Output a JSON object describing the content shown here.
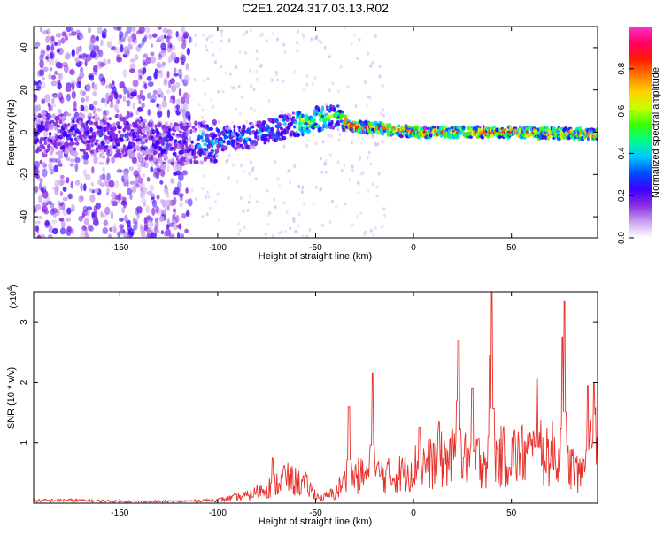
{
  "title": "C2E1.2024.317.03.13.R02",
  "chart_data": [
    {
      "type": "heatmap",
      "xlabel": "Height of straight line (km)",
      "ylabel": "Frequency (Hz)",
      "xlim": [
        -194,
        94
      ],
      "ylim": [
        -50,
        50
      ],
      "x_ticks": [
        -150,
        -100,
        -50,
        0,
        50
      ],
      "y_ticks": [
        -40,
        -20,
        0,
        20,
        40
      ],
      "colorbar": {
        "label": "Normalized spectral amplitude",
        "range": [
          0,
          1
        ],
        "ticks": [
          "0.0",
          "0.2",
          "0.4",
          "0.6",
          "0.8"
        ],
        "colormap": [
          "#ffffff",
          "#c8a0f0",
          "#8a2be2",
          "#3a00ff",
          "#0050ff",
          "#00c8ff",
          "#00ff8a",
          "#3cff00",
          "#c8ff00",
          "#ffd000",
          "#ff7a00",
          "#ff1a00",
          "#ff0066",
          "#ff33cc"
        ]
      },
      "ridge": [
        {
          "x": -194,
          "f": 0
        },
        {
          "x": -150,
          "f": -2
        },
        {
          "x": -120,
          "f": -6
        },
        {
          "x": -100,
          "f": -4
        },
        {
          "x": -80,
          "f": -1
        },
        {
          "x": -60,
          "f": 4
        },
        {
          "x": -45,
          "f": 7
        },
        {
          "x": -38,
          "f": 8
        },
        {
          "x": -32,
          "f": 3
        },
        {
          "x": -20,
          "f": 2
        },
        {
          "x": 0,
          "f": 0
        },
        {
          "x": 20,
          "f": 0
        },
        {
          "x": 50,
          "f": 0
        },
        {
          "x": 94,
          "f": -1
        }
      ]
    },
    {
      "type": "line",
      "xlabel": "Height of straight line (km)",
      "ylabel": "SNR (10 * v/v)",
      "y_exponent_label": "(x10",
      "y_exponent_power": "4",
      "y_exponent_close": ")",
      "xlim": [
        -194,
        94
      ],
      "ylim": [
        0,
        3.5
      ],
      "x_ticks": [
        -150,
        -100,
        -50,
        0,
        50
      ],
      "y_ticks": [
        1,
        2,
        3
      ],
      "line_color": "#e8302a",
      "envelope": [
        {
          "x": -194,
          "y": 0.04
        },
        {
          "x": -180,
          "y": 0.05
        },
        {
          "x": -150,
          "y": 0.03
        },
        {
          "x": -120,
          "y": 0.03
        },
        {
          "x": -100,
          "y": 0.05
        },
        {
          "x": -85,
          "y": 0.12
        },
        {
          "x": -75,
          "y": 0.25
        },
        {
          "x": -65,
          "y": 0.4
        },
        {
          "x": -55,
          "y": 0.3
        },
        {
          "x": -48,
          "y": 0.08
        },
        {
          "x": -40,
          "y": 0.2
        },
        {
          "x": -34,
          "y": 0.5
        },
        {
          "x": -30,
          "y": 0.55
        },
        {
          "x": -20,
          "y": 0.6
        },
        {
          "x": -10,
          "y": 0.55
        },
        {
          "x": 0,
          "y": 0.75
        },
        {
          "x": 10,
          "y": 0.85
        },
        {
          "x": 20,
          "y": 0.95
        },
        {
          "x": 30,
          "y": 0.9
        },
        {
          "x": 40,
          "y": 0.9
        },
        {
          "x": 50,
          "y": 1.0
        },
        {
          "x": 60,
          "y": 1.0
        },
        {
          "x": 70,
          "y": 1.05
        },
        {
          "x": 80,
          "y": 0.8
        },
        {
          "x": 85,
          "y": 0.55
        },
        {
          "x": 90,
          "y": 1.2
        },
        {
          "x": 94,
          "y": 1.3
        }
      ],
      "spikes": [
        {
          "x": -72,
          "y": 0.75
        },
        {
          "x": -66,
          "y": 0.62
        },
        {
          "x": -33,
          "y": 1.6
        },
        {
          "x": -21,
          "y": 2.15
        },
        {
          "x": 3,
          "y": 1.25
        },
        {
          "x": 13,
          "y": 1.35
        },
        {
          "x": 22,
          "y": 1.7
        },
        {
          "x": 23,
          "y": 2.7
        },
        {
          "x": 30,
          "y": 1.9
        },
        {
          "x": 39,
          "y": 2.45
        },
        {
          "x": 40,
          "y": 3.5
        },
        {
          "x": 63,
          "y": 2.05
        },
        {
          "x": 76,
          "y": 2.75
        },
        {
          "x": 77,
          "y": 3.35
        },
        {
          "x": 89,
          "y": 1.95
        },
        {
          "x": 92,
          "y": 2.0
        }
      ]
    }
  ]
}
